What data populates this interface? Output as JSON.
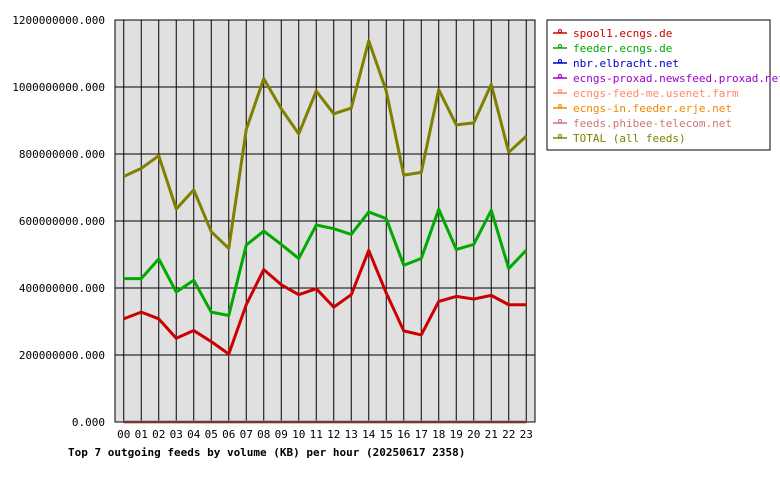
{
  "chart_data": {
    "type": "line",
    "title": "Top 7 outgoing feeds by volume (KB) per hour (20250617 2358)",
    "xlabel": "",
    "ylabel": "",
    "categories": [
      "00",
      "01",
      "02",
      "03",
      "04",
      "05",
      "06",
      "07",
      "08",
      "09",
      "10",
      "11",
      "12",
      "13",
      "14",
      "15",
      "16",
      "17",
      "18",
      "19",
      "20",
      "21",
      "22",
      "23"
    ],
    "ylim": [
      0,
      1200000000
    ],
    "yticks": [
      0,
      200000000,
      400000000,
      600000000,
      800000000,
      1000000000,
      1200000000
    ],
    "ytick_labels": [
      "0.000",
      "200000000.000",
      "400000000.000",
      "600000000.000",
      "800000000.000",
      "1000000000.000",
      "1200000000.000"
    ],
    "grid": true,
    "legend_position": "right",
    "series": [
      {
        "name": "spool1.ecngs.de",
        "color": "#cc0000",
        "values": [
          308000000,
          328000000,
          308000000,
          250000000,
          273000000,
          240000000,
          203000000,
          350000000,
          455000000,
          410000000,
          380000000,
          398000000,
          343000000,
          380000000,
          512000000,
          385000000,
          272000000,
          260000000,
          360000000,
          375000000,
          367000000,
          378000000,
          350000000,
          350000000
        ]
      },
      {
        "name": "feeder.ecngs.de",
        "color": "#00aa00",
        "values": [
          428000000,
          428000000,
          487000000,
          388000000,
          423000000,
          328000000,
          318000000,
          528000000,
          570000000,
          530000000,
          488000000,
          588000000,
          577000000,
          560000000,
          627000000,
          607000000,
          468000000,
          488000000,
          635000000,
          515000000,
          530000000,
          632000000,
          458000000,
          513000000
        ]
      },
      {
        "name": "nbr.elbracht.net",
        "color": "#0000cc",
        "values": [
          0,
          0,
          0,
          0,
          0,
          0,
          0,
          0,
          0,
          0,
          0,
          0,
          0,
          0,
          0,
          0,
          0,
          0,
          0,
          0,
          0,
          0,
          0,
          0
        ]
      },
      {
        "name": "ecngs-proxad.newsfeed.proxad.net",
        "color": "#9900cc",
        "values": [
          0,
          0,
          0,
          0,
          0,
          0,
          0,
          0,
          0,
          0,
          0,
          0,
          0,
          0,
          0,
          0,
          0,
          0,
          0,
          0,
          0,
          0,
          0,
          0
        ]
      },
      {
        "name": "ecngs-feed-me.usenet.farm",
        "color": "#ff8866",
        "values": [
          0,
          0,
          0,
          0,
          0,
          0,
          0,
          0,
          0,
          0,
          0,
          0,
          0,
          0,
          0,
          0,
          0,
          0,
          0,
          0,
          0,
          0,
          0,
          0
        ]
      },
      {
        "name": "ecngs-in.feeder.erje.net",
        "color": "#ee8800",
        "values": [
          0,
          0,
          0,
          0,
          0,
          0,
          0,
          0,
          0,
          0,
          0,
          0,
          0,
          0,
          0,
          0,
          0,
          0,
          0,
          0,
          0,
          0,
          0,
          0
        ]
      },
      {
        "name": "feeds.phibee-telecom.net",
        "color": "#cc7777",
        "values": [
          0,
          0,
          0,
          0,
          0,
          0,
          0,
          0,
          0,
          0,
          0,
          0,
          0,
          0,
          0,
          0,
          0,
          0,
          0,
          0,
          0,
          0,
          0,
          0
        ]
      },
      {
        "name": "TOTAL (all feeds)",
        "color": "#808000",
        "values": [
          733000000,
          757000000,
          795000000,
          636000000,
          693000000,
          568000000,
          518000000,
          873000000,
          1025000000,
          935000000,
          860000000,
          988000000,
          920000000,
          937000000,
          1138000000,
          988000000,
          737000000,
          745000000,
          992000000,
          887000000,
          893000000,
          1008000000,
          805000000,
          853000000
        ]
      }
    ]
  }
}
